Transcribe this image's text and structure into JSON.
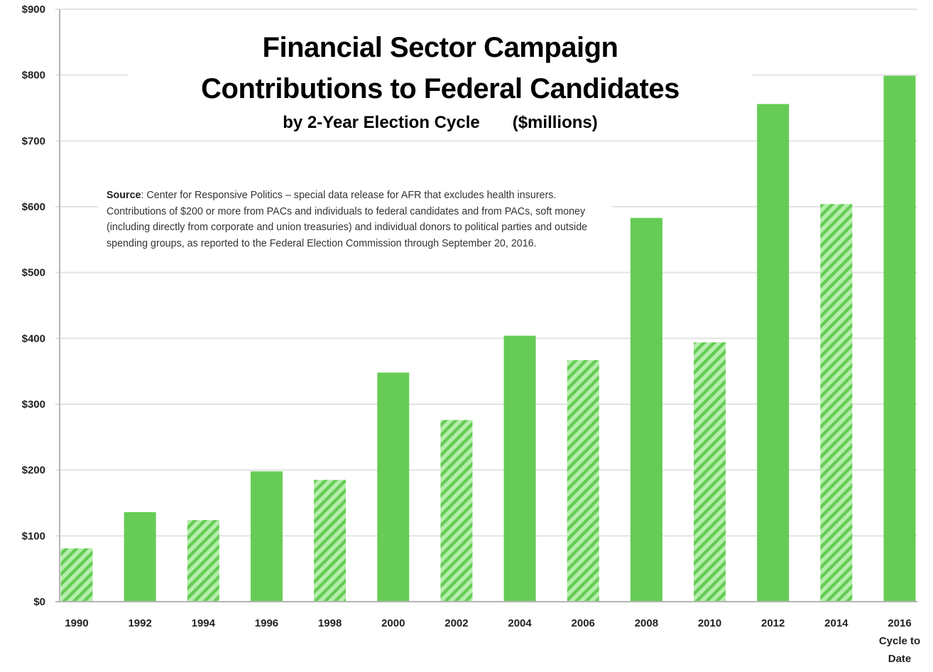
{
  "chart_data": {
    "type": "bar",
    "title": "Financial Sector Campaign Contributions to Federal Candidates",
    "title_lines": [
      "Financial Sector Campaign",
      "Contributions to Federal Candidates"
    ],
    "subtitle": "by 2-Year Election Cycle",
    "units_label": "($millions)",
    "xlabel": "",
    "ylabel": "",
    "ylim": [
      0,
      900
    ],
    "yticks": [
      0,
      100,
      200,
      300,
      400,
      500,
      600,
      700,
      800,
      900
    ],
    "ytick_labels": [
      "$0",
      "$100",
      "$200",
      "$300",
      "$400",
      "$500",
      "$600",
      "$700",
      "$800",
      "$900"
    ],
    "grid": true,
    "legend": "none",
    "categories": [
      "1990",
      "1992",
      "1994",
      "1996",
      "1998",
      "2000",
      "2002",
      "2004",
      "2006",
      "2008",
      "2010",
      "2012",
      "2014",
      "2016"
    ],
    "category_labels": [
      [
        "1990"
      ],
      [
        "1992"
      ],
      [
        "1994"
      ],
      [
        "1996"
      ],
      [
        "1998"
      ],
      [
        "2000"
      ],
      [
        "2002"
      ],
      [
        "2004"
      ],
      [
        "2006"
      ],
      [
        "2008"
      ],
      [
        "2010"
      ],
      [
        "2012"
      ],
      [
        "2014"
      ],
      [
        "2016",
        "Cycle to",
        "Date"
      ]
    ],
    "values": [
      81,
      136,
      124,
      198,
      185,
      348,
      276,
      404,
      367,
      583,
      394,
      756,
      604,
      799
    ],
    "cycle_type": [
      "midterm",
      "presidential",
      "midterm",
      "presidential",
      "midterm",
      "presidential",
      "midterm",
      "presidential",
      "midterm",
      "presidential",
      "midterm",
      "presidential",
      "midterm",
      "presidential"
    ],
    "colors": {
      "presidential_fill": "#66cc55",
      "midterm_fill": "#b4eeaa",
      "midterm_hatch": "#66cc55",
      "gridline": "#e2e2e2",
      "axis": "#b5b5b5"
    },
    "annotation": {
      "source_label": "Source",
      "source_text": ": Center for Responsive Politics  –  special data release for AFR that excludes health insurers. Contributions of $200 or more from PACs and individuals to federal candidates and from PACs, soft money (including directly from corporate and union treasuries) and individual donors to political parties and outside spending groups, as reported to the Federal Election Commission through September 20, 2016."
    }
  }
}
